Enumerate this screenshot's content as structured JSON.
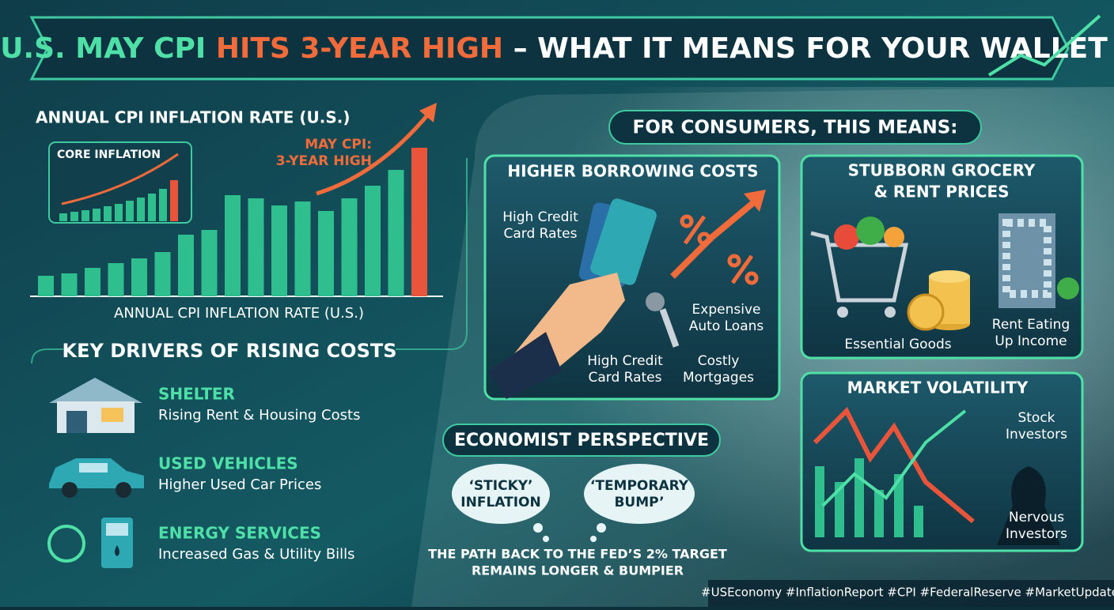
{
  "header": {
    "title_parts": [
      "U.S. MAY CPI",
      "HITS 3-YEAR HIGH",
      "– WHAT IT MEANS FOR YOUR WALLET"
    ]
  },
  "chart_data": [
    {
      "type": "bar",
      "title": "ANNUAL CPI INFLATION RATE (U.S.)",
      "x_label": "ANNUAL CPI INFLATION RATE (U.S.)",
      "annotation": [
        "MAY CPI:",
        "3-YEAR HIGH"
      ],
      "values": [
        26,
        29,
        36,
        42,
        48,
        56,
        78,
        84,
        128,
        124,
        115,
        120,
        108,
        124,
        140,
        160,
        188
      ],
      "colors": [
        "#2fbf8f",
        "#2fbf8f",
        "#2fbf8f",
        "#2fbf8f",
        "#2fbf8f",
        "#2fbf8f",
        "#2fbf8f",
        "#2fbf8f",
        "#2fbf8f",
        "#2fbf8f",
        "#2fbf8f",
        "#2fbf8f",
        "#2fbf8f",
        "#2fbf8f",
        "#2fbf8f",
        "#2fbf8f",
        "#e8553a"
      ]
    },
    {
      "type": "bar",
      "title": "CORE INFLATION",
      "values": [
        10,
        12,
        14,
        16,
        19,
        22,
        26,
        30,
        35,
        41,
        52
      ],
      "colors": [
        "#2fbf8f",
        "#2fbf8f",
        "#2fbf8f",
        "#2fbf8f",
        "#2fbf8f",
        "#2fbf8f",
        "#2fbf8f",
        "#2fbf8f",
        "#2fbf8f",
        "#2fbf8f",
        "#e8553a"
      ]
    }
  ],
  "drivers": {
    "title": "KEY DRIVERS OF RISING COSTS",
    "items": [
      {
        "title": "SHELTER",
        "description": "Rising Rent & Housing Costs"
      },
      {
        "title": "USED VEHICLES",
        "description": "Higher Used Car Prices"
      },
      {
        "title": "ENERGY SERVICES",
        "description": "Increased Gas & Utility Bills"
      }
    ]
  },
  "consumers": {
    "title": "FOR CONSUMERS, THIS MEANS:",
    "borrowing": {
      "title": "HIGHER BORROWING COSTS",
      "labels": [
        [
          "High Credit",
          "Card Rates"
        ],
        [
          "Expensive",
          "Auto Loans"
        ],
        [
          "High Credit",
          "Card Rates"
        ],
        [
          "Costly",
          "Mortgages"
        ]
      ]
    },
    "grocery": {
      "title": [
        "STUBBORN GROCERY",
        "& RENT PRICES"
      ],
      "labels": [
        [
          "Essential Goods"
        ],
        [
          "Rent Eating",
          "Up Income"
        ]
      ]
    },
    "market": {
      "title": "MARKET VOLATILITY",
      "labels": [
        [
          "Stock",
          "Investors"
        ],
        [
          "Nervous",
          "Investors"
        ]
      ]
    }
  },
  "economist": {
    "title": "ECONOMIST PERSPECTIVE",
    "bubbles": [
      [
        "‘STICKY’",
        "INFLATION"
      ],
      [
        "‘TEMPORARY",
        "BUMP’"
      ]
    ],
    "conclusion": [
      "THE PATH BACK TO THE FED’S 2% TARGET",
      "REMAINS LONGER & BUMPIER"
    ]
  },
  "hashtags": "#USEconomy #InflationReport #CPI #FederalReserve #MarketUpdate"
}
